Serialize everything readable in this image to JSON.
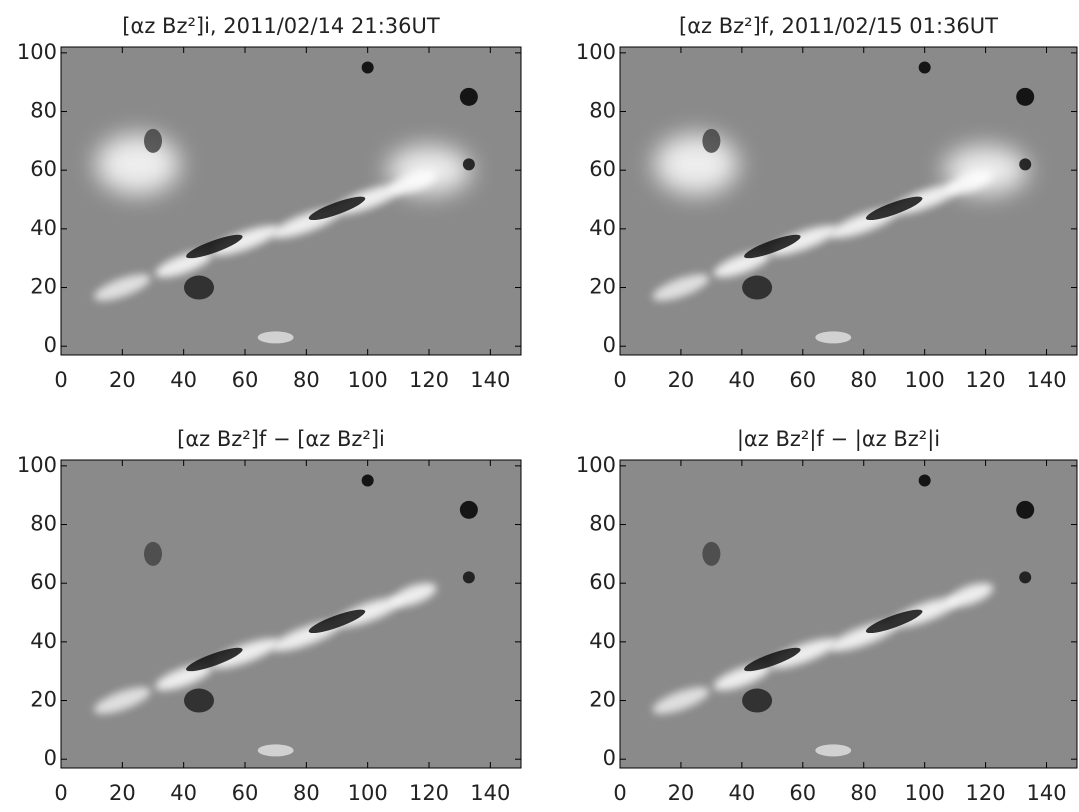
{
  "chart_data": [
    {
      "type": "image",
      "title": "[αz Bz²]i, 2011/02/14 21:36UT",
      "xlim": [
        0,
        150
      ],
      "ylim": [
        -3,
        102
      ],
      "xticks": [
        0,
        20,
        40,
        60,
        80,
        100,
        120,
        140
      ],
      "yticks": [
        0,
        20,
        40,
        60,
        80,
        100
      ]
    },
    {
      "type": "image",
      "title": "[αz Bz²]f, 2011/02/15 01:36UT",
      "xlim": [
        0,
        150
      ],
      "ylim": [
        -3,
        102
      ],
      "xticks": [
        0,
        20,
        40,
        60,
        80,
        100,
        120,
        140
      ],
      "yticks": [
        0,
        20,
        40,
        60,
        80,
        100
      ]
    },
    {
      "type": "image",
      "title": "[αz Bz²]f − [αz Bz²]i",
      "xlim": [
        0,
        150
      ],
      "ylim": [
        -3,
        102
      ],
      "xticks": [
        0,
        20,
        40,
        60,
        80,
        100,
        120,
        140
      ],
      "yticks": [
        0,
        20,
        40,
        60,
        80,
        100
      ]
    },
    {
      "type": "image",
      "title": "|αz Bz²|f − |αz Bz²|i",
      "xlim": [
        0,
        150
      ],
      "ylim": [
        -3,
        102
      ],
      "xticks": [
        0,
        20,
        40,
        60,
        80,
        100,
        120,
        140
      ],
      "yticks": [
        0,
        20,
        40,
        60,
        80,
        100
      ]
    }
  ]
}
